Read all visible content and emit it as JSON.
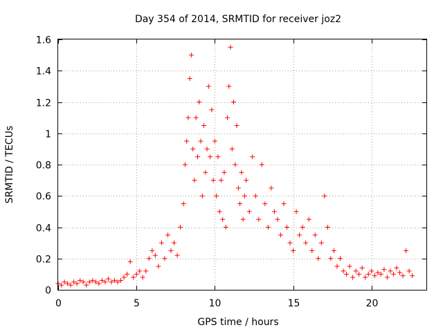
{
  "chart_data": {
    "type": "scatter",
    "title": "Day 354 of 2014, SRMTID for receiver joz2",
    "xlabel": "GPS time / hours",
    "ylabel": "SRMTID / TECUs",
    "xlim": [
      0,
      23.5
    ],
    "ylim": [
      0,
      1.6
    ],
    "xticks": [
      0,
      5,
      10,
      15,
      20
    ],
    "xtick_labels": [
      "0",
      "5",
      "10",
      "15",
      "20"
    ],
    "yticks": [
      0,
      0.2,
      0.4,
      0.6,
      0.8,
      1.0,
      1.2,
      1.4,
      1.6
    ],
    "ytick_labels": [
      "0",
      "0.2",
      "0.4",
      "0.6",
      "0.8",
      "1",
      "1.2",
      "1.4",
      "1.6"
    ],
    "grid": true,
    "marker": "+",
    "color": "#ff0000",
    "series": [
      {
        "name": "SRMTID",
        "x": [
          0.0,
          0.2,
          0.4,
          0.6,
          0.8,
          1.0,
          1.2,
          1.4,
          1.6,
          1.8,
          2.0,
          2.2,
          2.4,
          2.6,
          2.8,
          3.0,
          3.2,
          3.4,
          3.6,
          3.8,
          4.0,
          4.2,
          4.4,
          4.6,
          4.8,
          5.0,
          5.2,
          5.4,
          5.6,
          5.8,
          6.0,
          6.2,
          6.4,
          6.6,
          6.8,
          7.0,
          7.2,
          7.4,
          7.6,
          7.8,
          8.0,
          8.1,
          8.2,
          8.3,
          8.4,
          8.5,
          8.6,
          8.7,
          8.8,
          8.9,
          9.0,
          9.1,
          9.2,
          9.3,
          9.4,
          9.5,
          9.6,
          9.7,
          9.8,
          9.9,
          10.0,
          10.1,
          10.2,
          10.3,
          10.4,
          10.5,
          10.6,
          10.7,
          10.8,
          10.9,
          11.0,
          11.1,
          11.2,
          11.3,
          11.4,
          11.5,
          11.6,
          11.7,
          11.8,
          11.9,
          12.0,
          12.2,
          12.4,
          12.6,
          12.8,
          13.0,
          13.2,
          13.4,
          13.6,
          13.8,
          14.0,
          14.2,
          14.4,
          14.6,
          14.8,
          15.0,
          15.2,
          15.4,
          15.6,
          15.8,
          16.0,
          16.2,
          16.4,
          16.6,
          16.8,
          17.0,
          17.2,
          17.4,
          17.6,
          17.8,
          18.0,
          18.2,
          18.4,
          18.6,
          18.8,
          19.0,
          19.2,
          19.4,
          19.6,
          19.8,
          20.0,
          20.2,
          20.4,
          20.6,
          20.8,
          21.0,
          21.2,
          21.4,
          21.6,
          21.8,
          22.0,
          22.2,
          22.4,
          22.6
        ],
        "y": [
          0.04,
          0.03,
          0.05,
          0.04,
          0.03,
          0.05,
          0.04,
          0.06,
          0.05,
          0.03,
          0.05,
          0.06,
          0.05,
          0.04,
          0.06,
          0.05,
          0.07,
          0.05,
          0.06,
          0.05,
          0.06,
          0.08,
          0.1,
          0.18,
          0.08,
          0.1,
          0.12,
          0.08,
          0.12,
          0.2,
          0.25,
          0.22,
          0.15,
          0.3,
          0.2,
          0.35,
          0.25,
          0.3,
          0.22,
          0.4,
          0.55,
          0.8,
          0.95,
          1.1,
          1.35,
          1.5,
          0.9,
          0.7,
          1.1,
          0.85,
          1.2,
          0.95,
          0.6,
          1.05,
          0.75,
          0.9,
          1.3,
          0.85,
          1.15,
          0.7,
          0.95,
          0.6,
          0.85,
          0.5,
          0.7,
          0.45,
          0.75,
          0.4,
          1.1,
          1.3,
          1.55,
          0.9,
          1.2,
          0.8,
          1.05,
          0.65,
          0.55,
          0.75,
          0.45,
          0.6,
          0.7,
          0.5,
          0.85,
          0.6,
          0.45,
          0.8,
          0.55,
          0.4,
          0.65,
          0.5,
          0.45,
          0.35,
          0.55,
          0.4,
          0.3,
          0.25,
          0.5,
          0.35,
          0.4,
          0.3,
          0.45,
          0.25,
          0.35,
          0.2,
          0.3,
          0.6,
          0.4,
          0.2,
          0.25,
          0.15,
          0.2,
          0.12,
          0.1,
          0.15,
          0.08,
          0.12,
          0.1,
          0.14,
          0.08,
          0.1,
          0.12,
          0.09,
          0.11,
          0.1,
          0.13,
          0.08,
          0.12,
          0.1,
          0.14,
          0.11,
          0.09,
          0.25,
          0.12,
          0.09
        ]
      }
    ]
  }
}
